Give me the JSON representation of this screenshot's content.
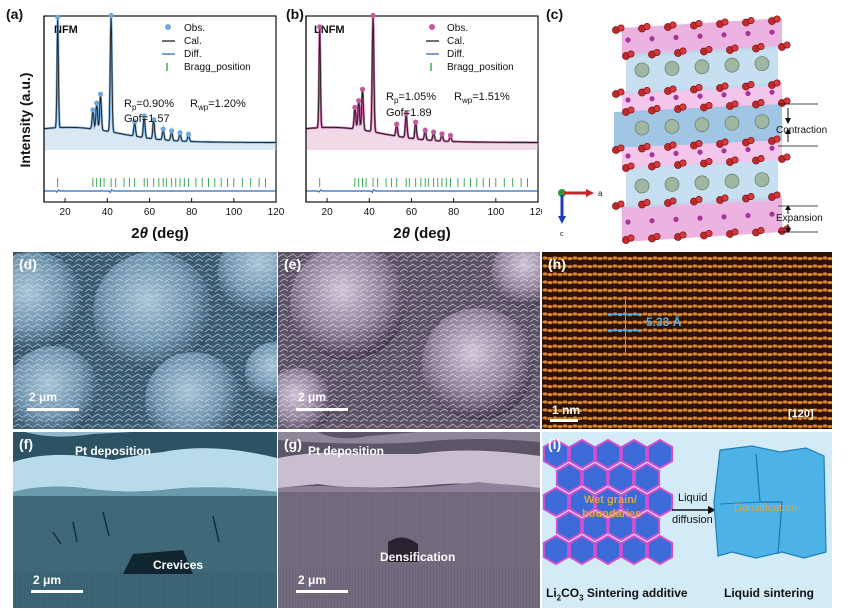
{
  "colors": {
    "nfm_obs": "#6fa8dc",
    "lnfm_obs": "#c25a9c",
    "cal_line": "#222222",
    "diff_line": "#2b6cc4",
    "bragg_tick": "#2aa04a",
    "nfm_fill": "#b9d5ea",
    "lnfm_fill": "#e8b9d6",
    "sem_blue": "#5e8aa8",
    "sem_pink": "#8d7c98",
    "hrtem": "#e07a1c",
    "schematic_bg": "#cfe8f6",
    "schematic_grain": "#3c6ad6"
  },
  "chart_data": [
    {
      "type": "line",
      "panel": "(a)",
      "sample": "NFM",
      "xlabel": "2θ (deg)",
      "ylabel": "Intensity (a.u.)",
      "xlim": [
        10,
        120
      ],
      "xticks": [
        20,
        40,
        60,
        80,
        100,
        120
      ],
      "legend": [
        "Obs.",
        "Cal.",
        "Diff.",
        "Bragg_position"
      ],
      "legend_position": "top-right",
      "stats": {
        "rp": "R",
        "rp_sub": "p",
        "rp_val": "=0.90%",
        "rwp": "R",
        "rwp_sub": "wp",
        "rwp_val": "=1.20%",
        "gof": "Gof=1.57"
      },
      "peaks_x": [
        16.5,
        33.2,
        35.0,
        36.8,
        41.8,
        53.0,
        57.5,
        62.0,
        66.5,
        70.5,
        74.5,
        78.5
      ],
      "peaks_y": [
        0.92,
        0.16,
        0.22,
        0.3,
        0.97,
        0.12,
        0.18,
        0.16,
        0.09,
        0.08,
        0.07,
        0.06
      ],
      "bragg_x": [
        16.5,
        33.2,
        35.0,
        36.8,
        38.5,
        41.8,
        44.0,
        48.0,
        50.5,
        53.0,
        57.5,
        59.0,
        62.0,
        64.5,
        66.5,
        68.0,
        70.5,
        72.5,
        74.5,
        76.5,
        78.5,
        82.0,
        85.0,
        88.0,
        91.0,
        94.0,
        97.0,
        100.0,
        104.0,
        108.0,
        112.0,
        115.0
      ]
    },
    {
      "type": "line",
      "panel": "(b)",
      "sample": "LNFM",
      "xlabel": "2θ (deg)",
      "xlim": [
        10,
        120
      ],
      "xticks": [
        20,
        40,
        60,
        80,
        100,
        120
      ],
      "legend": [
        "Obs.",
        "Cal.",
        "Diff.",
        "Bragg_position"
      ],
      "legend_position": "top-right",
      "stats": {
        "rp": "R",
        "rp_sub": "p",
        "rp_val": "=1.05%",
        "rwp": "R",
        "rwp_sub": "wp",
        "rwp_val": "=1.51%",
        "gof": "Gof=1.89"
      },
      "peaks_x": [
        16.5,
        33.2,
        35.0,
        36.8,
        41.8,
        53.0,
        57.5,
        62.0,
        66.5,
        70.5,
        74.5,
        78.5
      ],
      "peaks_y": [
        0.84,
        0.18,
        0.24,
        0.34,
        0.97,
        0.1,
        0.2,
        0.14,
        0.08,
        0.07,
        0.06,
        0.05
      ],
      "bragg_x": [
        16.5,
        33.2,
        35.0,
        36.8,
        38.5,
        41.8,
        44.0,
        48.0,
        50.5,
        53.0,
        57.5,
        59.0,
        62.0,
        64.5,
        66.5,
        68.0,
        70.5,
        72.5,
        74.5,
        76.5,
        78.5,
        82.0,
        85.0,
        88.0,
        91.0,
        94.0,
        97.0,
        100.0,
        104.0,
        108.0,
        112.0,
        115.0
      ]
    }
  ],
  "panels": {
    "a": "(a)",
    "b": "(b)",
    "c": "(c)",
    "d": "(d)",
    "e": "(e)",
    "f": "(f)",
    "g": "(g)",
    "h": "(h)",
    "i": "(i)"
  },
  "structure": {
    "contraction": "Contraction",
    "expansion": "Expansion",
    "axis_a": "a",
    "axis_c": "c"
  },
  "sem": {
    "scale_d": "2 μm",
    "scale_e": "2 μm",
    "scale_f": "2 μm",
    "scale_g": "2 μm",
    "pt_f": "Pt deposition",
    "pt_g": "Pt deposition",
    "crevices": "Crevices",
    "densification_g": "Densification"
  },
  "hrtem": {
    "spacing": "5.33 Å",
    "scale": "1 nm",
    "zone_axis": "[120]"
  },
  "schematic": {
    "wet_grain": "Wet grain/",
    "boundaries": "boundaries",
    "liquid": "Liquid",
    "diffusion": "diffusion",
    "densification": "Densification",
    "caption_left_pre": "Li",
    "caption_left_sub1": "2",
    "caption_left_mid": "CO",
    "caption_left_sub2": "3",
    "caption_left_post": " Sintering additive",
    "caption_right": "Liquid sintering"
  }
}
